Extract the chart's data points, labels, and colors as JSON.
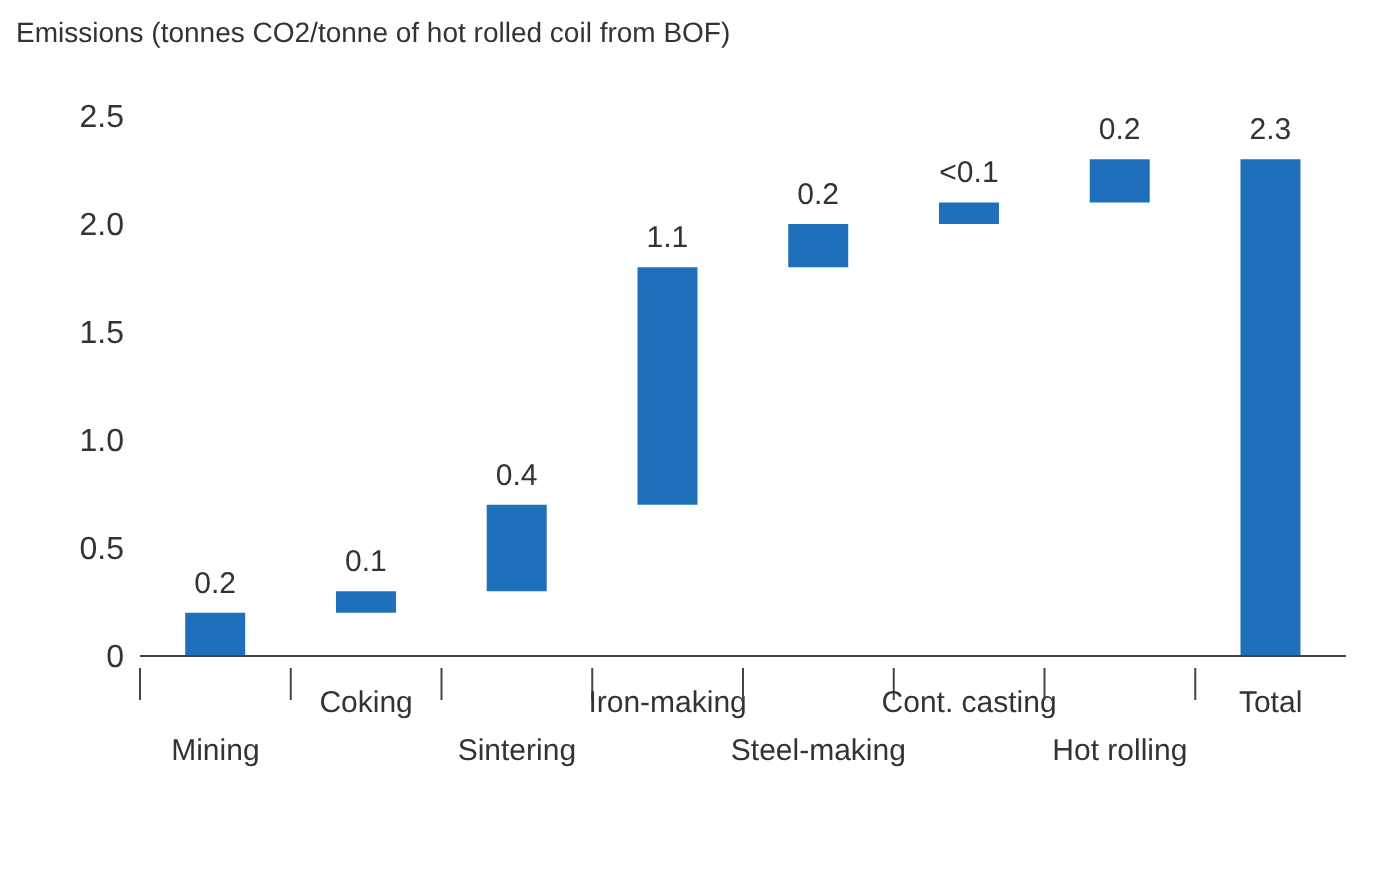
{
  "chart_data": {
    "type": "bar",
    "ylabel": "Emissions (tonnes CO2/tonne of hot rolled coil from BOF)",
    "categories": [
      "Mining",
      "Coking",
      "Sintering",
      "Iron-making",
      "Steel-making",
      "Cont. casting",
      "Hot rolling",
      "Total"
    ],
    "values": [
      0.2,
      0.1,
      0.4,
      1.1,
      0.2,
      0.1,
      0.2,
      2.3
    ],
    "base": [
      0,
      0.2,
      0.3,
      0.7,
      1.8,
      2.0,
      2.1,
      0
    ],
    "value_labels": [
      "0.2",
      "0.1",
      "0.4",
      "1.1",
      "0.2",
      "<0.1",
      "0.2",
      "2.3"
    ],
    "color": "#1f70bb",
    "ylim": [
      0,
      2.5
    ],
    "yticks": [
      0,
      0.5,
      {
        "value": 1,
        "label": "1.0"
      },
      1.5,
      {
        "value": 2,
        "label": "2.0"
      },
      2.5
    ]
  }
}
